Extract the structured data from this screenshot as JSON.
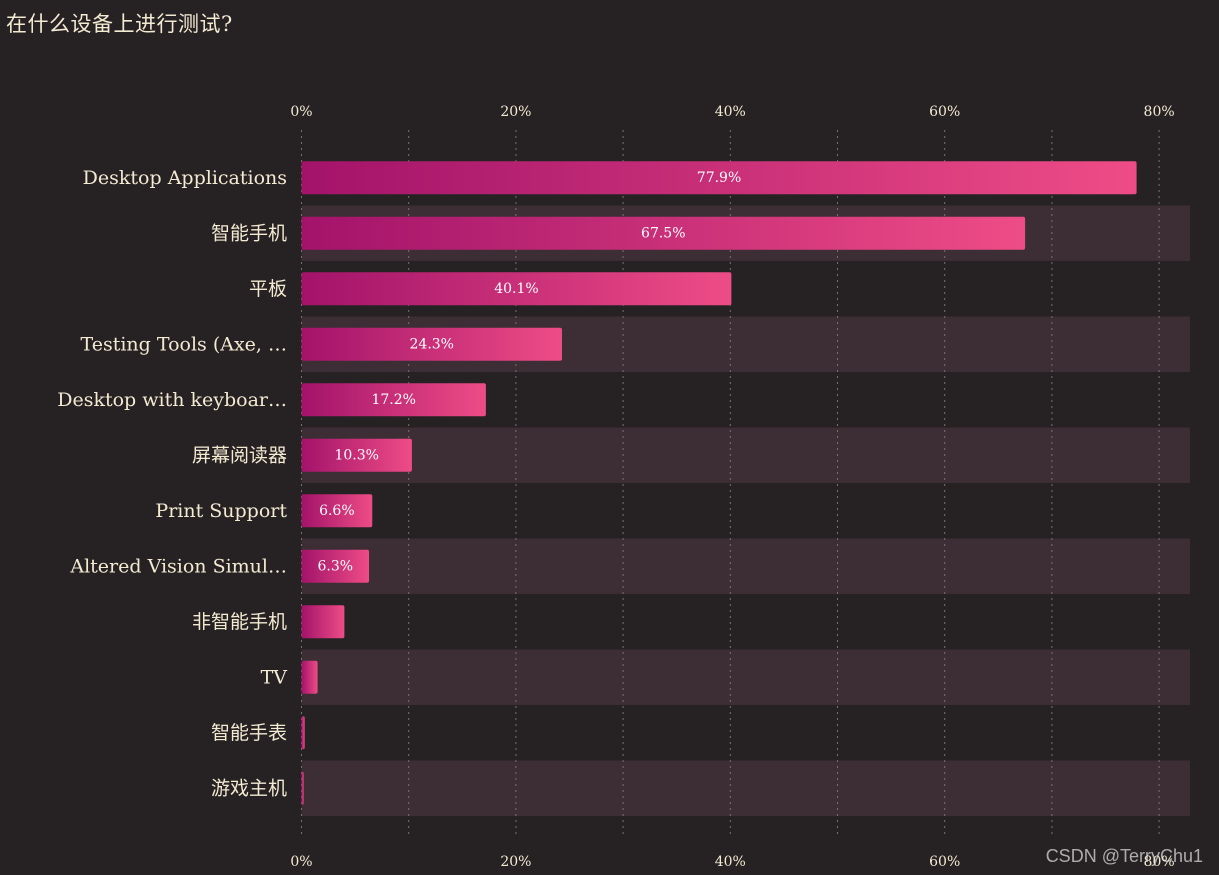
{
  "title": "在什么设备上进行测试?",
  "watermark": "CSDN @TerryChu1",
  "colors": {
    "background": "#262223",
    "band": "#3d2e35",
    "bar_start": "#a3136a",
    "bar_end": "#ee4c86",
    "text": "#f3ead2",
    "grid": "#7a7070"
  },
  "chart_data": {
    "type": "bar",
    "orientation": "horizontal",
    "title": "在什么设备上进行测试?",
    "xlim": [
      0,
      0.83
    ],
    "x_ticks": [
      0,
      0.2,
      0.4,
      0.6,
      0.8
    ],
    "x_tick_labels": [
      "0%",
      "20%",
      "40%",
      "60%",
      "80%"
    ],
    "x_axis_position": "top and bottom",
    "grid": "vertical dotted lines every 10%",
    "categories": [
      "Desktop Applications",
      "智能手机",
      "平板",
      "Testing Tools (Axe, …",
      "Desktop with keyboar…",
      "屏幕阅读器",
      "Print Support",
      "Altered Vision Simul…",
      "非智能手机",
      "TV",
      "智能手表",
      "游戏主机"
    ],
    "values": [
      0.779,
      0.675,
      0.401,
      0.243,
      0.172,
      0.103,
      0.066,
      0.063,
      0.04,
      0.015,
      0.003,
      0.002
    ],
    "data_labels": [
      "77.9%",
      "67.5%",
      "40.1%",
      "24.3%",
      "17.2%",
      "10.3%",
      "6.6%",
      "6.3%",
      "",
      "",
      "",
      ""
    ]
  }
}
